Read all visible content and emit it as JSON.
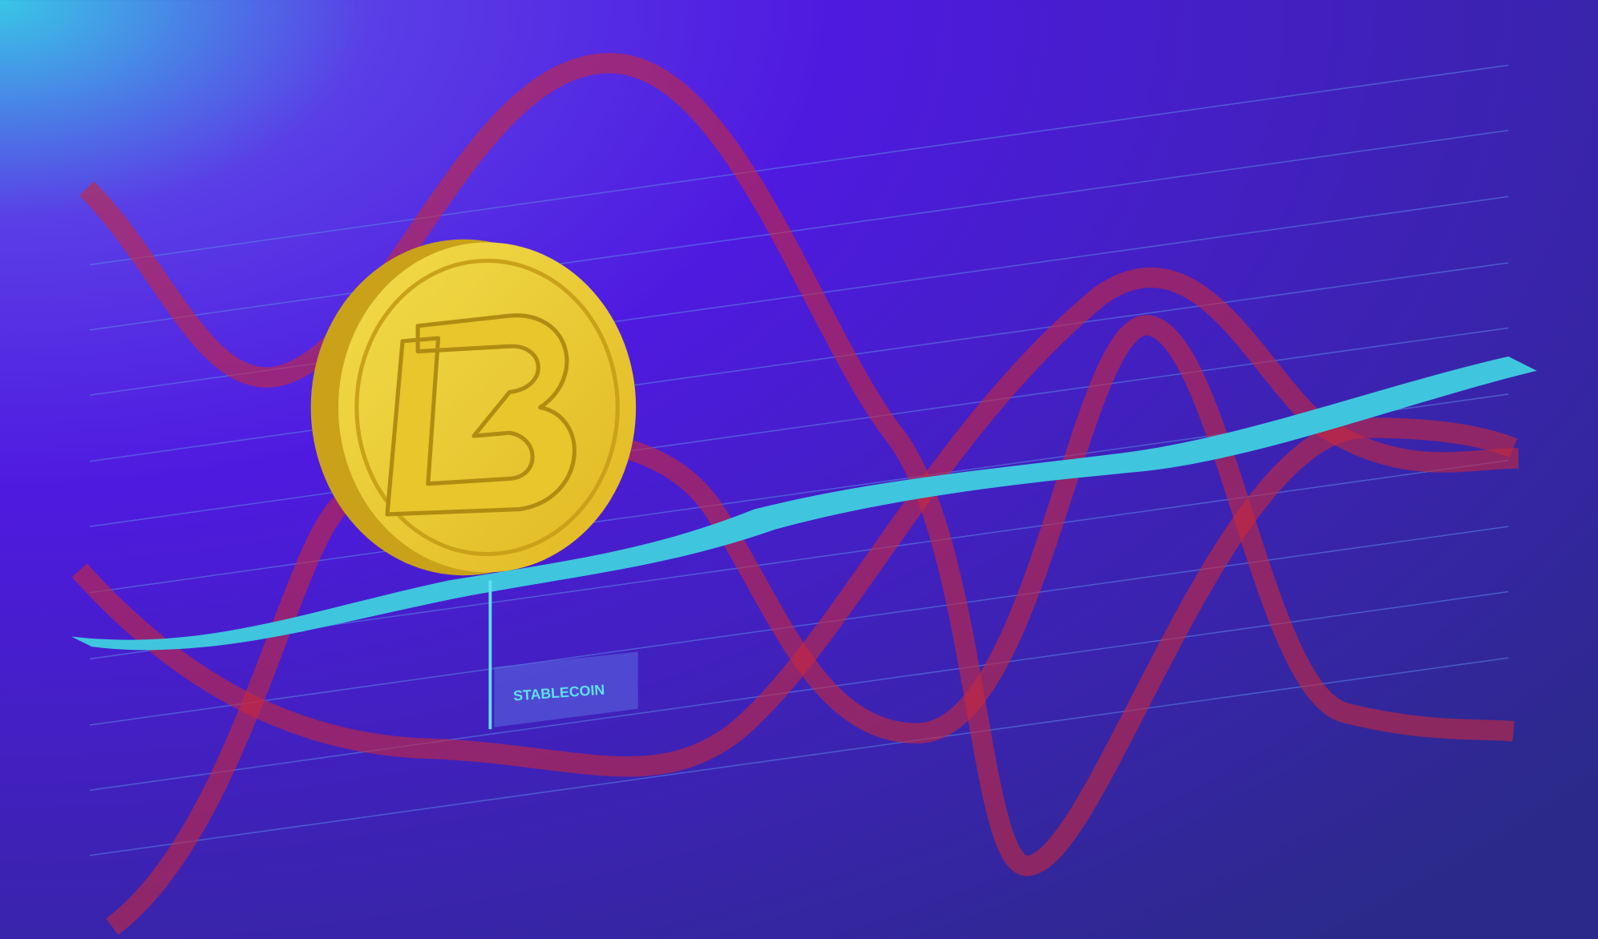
{
  "label": {
    "text": "STABLECOIN"
  }
}
